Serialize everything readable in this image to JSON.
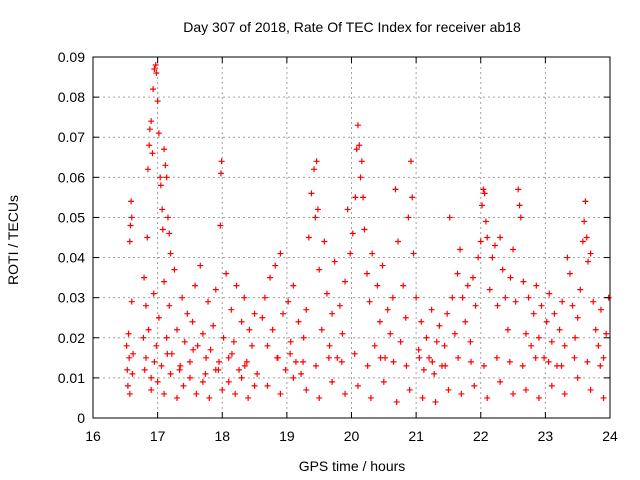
{
  "chart_data": {
    "type": "scatter",
    "title": "Day 307 of 2018, Rate Of TEC Index for receiver ab18",
    "xlabel": "GPS time / hours",
    "ylabel": "ROTI / TECUs",
    "xlim": [
      16,
      24
    ],
    "ylim": [
      0,
      0.09
    ],
    "grid": true,
    "marker": "+",
    "marker_color": "#ff0000",
    "x_ticks": [
      "16",
      "17",
      "18",
      "19",
      "20",
      "21",
      "22",
      "23",
      "24"
    ],
    "y_ticks": [
      "0",
      "0.01",
      "0.02",
      "0.03",
      "0.04",
      "0.05",
      "0.06",
      "0.07",
      "0.08",
      "0.09"
    ],
    "series": [
      {
        "name": "ROTI",
        "points": [
          [
            16.52,
            0.018
          ],
          [
            16.53,
            0.012
          ],
          [
            16.54,
            0.008
          ],
          [
            16.55,
            0.021
          ],
          [
            16.56,
            0.015
          ],
          [
            16.57,
            0.006
          ],
          [
            16.58,
            0.048
          ],
          [
            16.59,
            0.054
          ],
          [
            16.6,
            0.029
          ],
          [
            16.61,
            0.011
          ],
          [
            16.62,
            0.016
          ],
          [
            16.6,
            0.05
          ],
          [
            16.57,
            0.044
          ],
          [
            16.78,
            0.02
          ],
          [
            16.79,
            0.035
          ],
          [
            16.8,
            0.012
          ],
          [
            16.82,
            0.028
          ],
          [
            16.84,
            0.045
          ],
          [
            16.85,
            0.062
          ],
          [
            16.87,
            0.068
          ],
          [
            16.88,
            0.072
          ],
          [
            16.9,
            0.074
          ],
          [
            16.92,
            0.066
          ],
          [
            16.93,
            0.082
          ],
          [
            16.95,
            0.087
          ],
          [
            16.97,
            0.088
          ],
          [
            16.98,
            0.086
          ],
          [
            17.0,
            0.079
          ],
          [
            17.02,
            0.071
          ],
          [
            17.04,
            0.06
          ],
          [
            17.05,
            0.058
          ],
          [
            17.07,
            0.052
          ],
          [
            17.08,
            0.047
          ],
          [
            17.1,
            0.067
          ],
          [
            17.12,
            0.063
          ],
          [
            17.14,
            0.06
          ],
          [
            17.16,
            0.05
          ],
          [
            17.18,
            0.046
          ],
          [
            17.2,
            0.041
          ],
          [
            16.82,
            0.015
          ],
          [
            16.86,
            0.022
          ],
          [
            16.9,
            0.01
          ],
          [
            16.94,
            0.031
          ],
          [
            16.98,
            0.018
          ],
          [
            17.02,
            0.025
          ],
          [
            17.06,
            0.013
          ],
          [
            17.1,
            0.034
          ],
          [
            17.14,
            0.02
          ],
          [
            17.18,
            0.028
          ],
          [
            17.22,
            0.016
          ],
          [
            17.26,
            0.037
          ],
          [
            17.3,
            0.022
          ],
          [
            17.34,
            0.012
          ],
          [
            17.38,
            0.03
          ],
          [
            17.42,
            0.019
          ],
          [
            17.46,
            0.026
          ],
          [
            17.5,
            0.014
          ],
          [
            17.54,
            0.024
          ],
          [
            17.58,
            0.033
          ],
          [
            17.62,
            0.018
          ],
          [
            17.66,
            0.038
          ],
          [
            17.7,
            0.021
          ],
          [
            17.74,
            0.011
          ],
          [
            17.78,
            0.029
          ],
          [
            17.82,
            0.017
          ],
          [
            17.86,
            0.023
          ],
          [
            17.9,
            0.032
          ],
          [
            17.94,
            0.012
          ],
          [
            17.98,
            0.061
          ],
          [
            17.99,
            0.064
          ],
          [
            17.97,
            0.048
          ],
          [
            18.02,
            0.02
          ],
          [
            18.06,
            0.036
          ],
          [
            18.1,
            0.015
          ],
          [
            18.14,
            0.027
          ],
          [
            18.18,
            0.019
          ],
          [
            18.22,
            0.033
          ],
          [
            18.26,
            0.012
          ],
          [
            18.3,
            0.024
          ],
          [
            18.34,
            0.03
          ],
          [
            18.38,
            0.014
          ],
          [
            18.42,
            0.022
          ],
          [
            18.46,
            0.018
          ],
          [
            18.5,
            0.026
          ],
          [
            18.54,
            0.011
          ],
          [
            16.9,
            0.007
          ],
          [
            17.0,
            0.009
          ],
          [
            17.1,
            0.006
          ],
          [
            17.2,
            0.011
          ],
          [
            17.3,
            0.005
          ],
          [
            17.4,
            0.008
          ],
          [
            17.5,
            0.01
          ],
          [
            17.6,
            0.006
          ],
          [
            17.7,
            0.009
          ],
          [
            17.8,
            0.005
          ],
          [
            17.9,
            0.012
          ],
          [
            18.0,
            0.007
          ],
          [
            18.1,
            0.009
          ],
          [
            18.2,
            0.006
          ],
          [
            18.3,
            0.01
          ],
          [
            18.4,
            0.005
          ],
          [
            18.5,
            0.008
          ],
          [
            18.62,
            0.025
          ],
          [
            18.66,
            0.03
          ],
          [
            18.7,
            0.018
          ],
          [
            18.74,
            0.035
          ],
          [
            18.78,
            0.022
          ],
          [
            18.82,
            0.038
          ],
          [
            18.86,
            0.015
          ],
          [
            18.9,
            0.041
          ],
          [
            18.94,
            0.026
          ],
          [
            18.98,
            0.012
          ],
          [
            19.02,
            0.029
          ],
          [
            19.06,
            0.019
          ],
          [
            19.1,
            0.033
          ],
          [
            19.14,
            0.014
          ],
          [
            19.18,
            0.024
          ],
          [
            19.22,
            0.011
          ],
          [
            19.26,
            0.02
          ],
          [
            19.3,
            0.027
          ],
          [
            19.34,
            0.045
          ],
          [
            19.38,
            0.056
          ],
          [
            19.42,
            0.062
          ],
          [
            19.44,
            0.05
          ],
          [
            19.46,
            0.064
          ],
          [
            19.48,
            0.052
          ],
          [
            19.5,
            0.037
          ],
          [
            19.54,
            0.022
          ],
          [
            19.58,
            0.044
          ],
          [
            19.62,
            0.031
          ],
          [
            19.66,
            0.018
          ],
          [
            19.7,
            0.026
          ],
          [
            19.74,
            0.039
          ],
          [
            19.78,
            0.015
          ],
          [
            19.82,
            0.028
          ],
          [
            19.86,
            0.021
          ],
          [
            19.9,
            0.034
          ],
          [
            19.94,
            0.052
          ],
          [
            19.98,
            0.041
          ],
          [
            20.02,
            0.046
          ],
          [
            20.06,
            0.055
          ],
          [
            20.08,
            0.067
          ],
          [
            20.1,
            0.073
          ],
          [
            20.12,
            0.068
          ],
          [
            20.14,
            0.06
          ],
          [
            20.16,
            0.064
          ],
          [
            20.18,
            0.055
          ],
          [
            20.2,
            0.047
          ],
          [
            20.24,
            0.036
          ],
          [
            20.28,
            0.029
          ],
          [
            20.32,
            0.041
          ],
          [
            20.36,
            0.018
          ],
          [
            20.4,
            0.033
          ],
          [
            20.44,
            0.024
          ],
          [
            20.48,
            0.038
          ],
          [
            20.52,
            0.015
          ],
          [
            20.56,
            0.027
          ],
          [
            20.6,
            0.021
          ],
          [
            20.64,
            0.03
          ],
          [
            20.68,
            0.057
          ],
          [
            20.72,
            0.044
          ],
          [
            20.76,
            0.019
          ],
          [
            20.8,
            0.033
          ],
          [
            20.84,
            0.025
          ],
          [
            20.88,
            0.05
          ],
          [
            20.92,
            0.064
          ],
          [
            20.94,
            0.055
          ],
          [
            20.96,
            0.041
          ],
          [
            21.0,
            0.03
          ],
          [
            18.7,
            0.008
          ],
          [
            18.9,
            0.006
          ],
          [
            19.1,
            0.01
          ],
          [
            19.3,
            0.007
          ],
          [
            19.5,
            0.005
          ],
          [
            19.7,
            0.009
          ],
          [
            19.9,
            0.006
          ],
          [
            20.1,
            0.008
          ],
          [
            20.3,
            0.005
          ],
          [
            20.5,
            0.009
          ],
          [
            20.7,
            0.004
          ],
          [
            20.9,
            0.007
          ],
          [
            21.04,
            0.017
          ],
          [
            21.08,
            0.024
          ],
          [
            21.12,
            0.012
          ],
          [
            21.16,
            0.02
          ],
          [
            21.2,
            0.015
          ],
          [
            21.24,
            0.027
          ],
          [
            21.28,
            0.011
          ],
          [
            21.32,
            0.019
          ],
          [
            21.36,
            0.023
          ],
          [
            21.4,
            0.013
          ],
          [
            21.44,
            0.018
          ],
          [
            21.48,
            0.026
          ],
          [
            21.52,
            0.05
          ],
          [
            21.56,
            0.03
          ],
          [
            21.6,
            0.021
          ],
          [
            21.64,
            0.036
          ],
          [
            21.68,
            0.042
          ],
          [
            21.72,
            0.03
          ],
          [
            21.76,
            0.024
          ],
          [
            21.8,
            0.033
          ],
          [
            21.84,
            0.019
          ],
          [
            21.88,
            0.035
          ],
          [
            21.92,
            0.028
          ],
          [
            21.96,
            0.04
          ],
          [
            22.0,
            0.044
          ],
          [
            22.02,
            0.053
          ],
          [
            22.04,
            0.057
          ],
          [
            22.06,
            0.056
          ],
          [
            22.08,
            0.049
          ],
          [
            22.1,
            0.045
          ],
          [
            22.14,
            0.032
          ],
          [
            22.18,
            0.04
          ],
          [
            22.22,
            0.043
          ],
          [
            22.26,
            0.028
          ],
          [
            22.3,
            0.045
          ],
          [
            22.34,
            0.037
          ],
          [
            22.38,
            0.03
          ],
          [
            22.42,
            0.022
          ],
          [
            22.46,
            0.035
          ],
          [
            22.5,
            0.042
          ],
          [
            22.54,
            0.029
          ],
          [
            22.58,
            0.057
          ],
          [
            22.6,
            0.053
          ],
          [
            22.62,
            0.05
          ],
          [
            22.66,
            0.034
          ],
          [
            22.7,
            0.021
          ],
          [
            22.74,
            0.03
          ],
          [
            22.78,
            0.018
          ],
          [
            22.82,
            0.026
          ],
          [
            22.86,
            0.033
          ],
          [
            22.9,
            0.02
          ],
          [
            22.94,
            0.028
          ],
          [
            22.98,
            0.015
          ],
          [
            23.02,
            0.024
          ],
          [
            23.06,
            0.031
          ],
          [
            23.1,
            0.019
          ],
          [
            23.14,
            0.026
          ],
          [
            23.18,
            0.013
          ],
          [
            23.22,
            0.022
          ],
          [
            23.26,
            0.029
          ],
          [
            23.3,
            0.018
          ],
          [
            23.34,
            0.04
          ],
          [
            23.38,
            0.036
          ],
          [
            23.42,
            0.028
          ],
          [
            23.46,
            0.02
          ],
          [
            23.5,
            0.025
          ],
          [
            23.54,
            0.032
          ],
          [
            23.58,
            0.044
          ],
          [
            23.6,
            0.049
          ],
          [
            23.62,
            0.054
          ],
          [
            23.64,
            0.045
          ],
          [
            23.66,
            0.039
          ],
          [
            23.7,
            0.041
          ],
          [
            23.74,
            0.029
          ],
          [
            23.78,
            0.022
          ],
          [
            23.82,
            0.018
          ],
          [
            23.86,
            0.027
          ],
          [
            23.9,
            0.015
          ],
          [
            23.94,
            0.021
          ],
          [
            23.98,
            0.03
          ],
          [
            21.1,
            0.005
          ],
          [
            21.3,
            0.004
          ],
          [
            21.5,
            0.007
          ],
          [
            21.7,
            0.006
          ],
          [
            21.9,
            0.008
          ],
          [
            22.1,
            0.005
          ],
          [
            22.3,
            0.009
          ],
          [
            22.5,
            0.006
          ],
          [
            22.7,
            0.007
          ],
          [
            22.9,
            0.005
          ],
          [
            23.1,
            0.008
          ],
          [
            23.3,
            0.006
          ],
          [
            23.5,
            0.01
          ],
          [
            23.7,
            0.007
          ],
          [
            23.9,
            0.005
          ],
          [
            16.95,
            0.014
          ],
          [
            17.15,
            0.016
          ],
          [
            17.35,
            0.013
          ],
          [
            17.55,
            0.017
          ],
          [
            17.75,
            0.015
          ],
          [
            17.95,
            0.014
          ],
          [
            18.15,
            0.016
          ],
          [
            18.35,
            0.013
          ],
          [
            18.85,
            0.015
          ],
          [
            19.05,
            0.016
          ],
          [
            19.25,
            0.014
          ],
          [
            19.45,
            0.013
          ],
          [
            19.65,
            0.015
          ],
          [
            19.85,
            0.014
          ],
          [
            20.05,
            0.016
          ],
          [
            20.25,
            0.013
          ],
          [
            20.45,
            0.015
          ],
          [
            20.65,
            0.014
          ],
          [
            20.85,
            0.013
          ],
          [
            21.05,
            0.015
          ],
          [
            21.25,
            0.014
          ],
          [
            21.45,
            0.013
          ],
          [
            21.65,
            0.015
          ],
          [
            21.85,
            0.014
          ],
          [
            22.05,
            0.013
          ],
          [
            22.25,
            0.015
          ],
          [
            22.45,
            0.014
          ],
          [
            22.65,
            0.013
          ],
          [
            22.85,
            0.015
          ],
          [
            23.05,
            0.014
          ],
          [
            23.25,
            0.013
          ],
          [
            23.45,
            0.015
          ],
          [
            23.65,
            0.014
          ],
          [
            23.85,
            0.013
          ]
        ]
      }
    ]
  }
}
